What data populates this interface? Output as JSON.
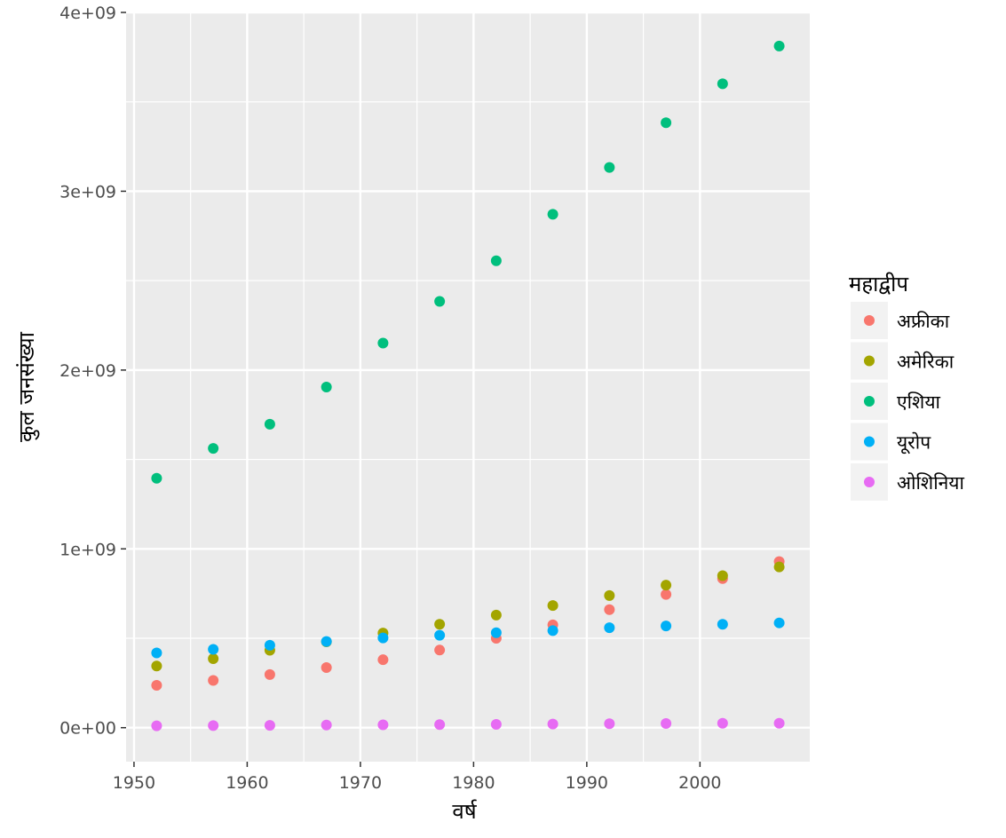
{
  "chart_data": {
    "type": "scatter",
    "xlabel": "वर्ष",
    "ylabel": "कुल जनसंख्या",
    "xlim": [
      1949.3,
      2009.7
    ],
    "ylim": [
      -190000000,
      4000000000
    ],
    "x_ticks": [
      1950,
      1960,
      1970,
      1980,
      1990,
      2000
    ],
    "x_tick_labels": [
      "1950",
      "1960",
      "1970",
      "1980",
      "1990",
      "2000"
    ],
    "y_ticks": [
      0,
      1000000000,
      2000000000,
      3000000000,
      4000000000
    ],
    "y_tick_labels": [
      "0e+00",
      "1e+09",
      "2e+09",
      "3e+09",
      "4e+09"
    ],
    "grid": true,
    "legend": {
      "title": "महाद्वीप",
      "position": "right"
    },
    "x": [
      1952,
      1957,
      1962,
      1967,
      1972,
      1977,
      1982,
      1987,
      1992,
      1997,
      2002,
      2007
    ],
    "series": [
      {
        "name": "अफ्रीका",
        "color": "#F8766D",
        "values": [
          237000000,
          264000000,
          297000000,
          336000000,
          380000000,
          434000000,
          500000000,
          575000000,
          660000000,
          745000000,
          834000000,
          929000000
        ]
      },
      {
        "name": "अमेरिका",
        "color": "#A3A500",
        "values": [
          345000000,
          386000000,
          433000000,
          480000000,
          529000000,
          578000000,
          630000000,
          683000000,
          739000000,
          797000000,
          850000000,
          899000000
        ]
      },
      {
        "name": "एशिया",
        "color": "#00BF7D",
        "values": [
          1395000000,
          1562000000,
          1697000000,
          1905000000,
          2151000000,
          2384000000,
          2611000000,
          2871000000,
          3133000000,
          3383000000,
          3601000000,
          3812000000
        ]
      },
      {
        "name": "यूरोप",
        "color": "#00B0F6",
        "values": [
          418000000,
          438000000,
          461000000,
          482000000,
          502000000,
          517000000,
          531000000,
          543000000,
          559000000,
          569000000,
          578000000,
          586000000
        ]
      },
      {
        "name": "ओशिनिया",
        "color": "#E76BF3",
        "values": [
          10700000,
          11900000,
          13000000,
          14600000,
          16100000,
          17300000,
          18600000,
          20200000,
          22000000,
          23500000,
          24900000,
          24500000
        ]
      }
    ]
  }
}
